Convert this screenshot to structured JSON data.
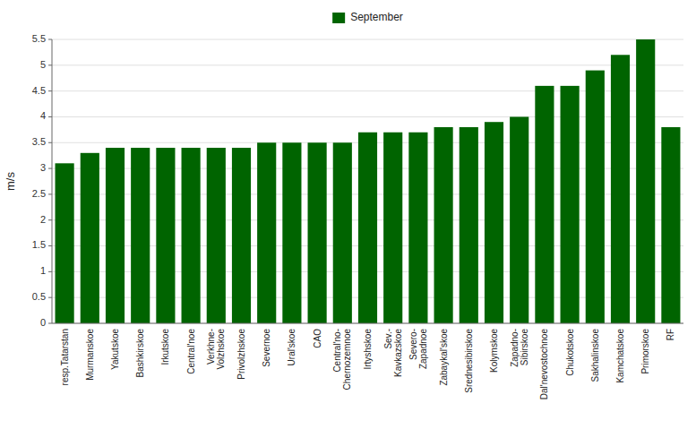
{
  "chart_data": {
    "type": "bar",
    "categories": [
      "resp.Tatarstan",
      "Murmanskoe",
      "Yakutskoe",
      "Bashkirskoe",
      "Irkutskoe",
      "Central'noe",
      "Verkhne-\nVolzhskoe",
      "Privolzhskoe",
      "Severnoe",
      "Ural'skoe",
      "CAO",
      "Central'no-\nChernozemnoe",
      "Irtyshskoe",
      "Sev.-\nKavkazskoe",
      "Severo-\nZapadnoe",
      "Zabaykal'skoe",
      "Srednesibirskoe",
      "Kolymskoe",
      "Zapadno-\nSibirskoe",
      "Dal'nevostochnoe",
      "Chukotskoe",
      "Sakhalinskoe",
      "Kamchatskoe",
      "Primorskoe",
      "RF"
    ],
    "series": [
      {
        "name": "September",
        "color": "#006400",
        "values": [
          3.1,
          3.3,
          3.4,
          3.4,
          3.4,
          3.4,
          3.4,
          3.4,
          3.5,
          3.5,
          3.5,
          3.5,
          3.7,
          3.7,
          3.7,
          3.8,
          3.8,
          3.9,
          4.0,
          4.6,
          4.6,
          4.9,
          5.2,
          5.5,
          3.8
        ]
      }
    ],
    "y_label": "m/s",
    "ylim": [
      0,
      5.5
    ],
    "yticks": [
      0,
      0.5,
      1.0,
      1.5,
      2.0,
      2.5,
      3.0,
      3.5,
      4.0,
      4.5,
      5.0,
      5.5
    ],
    "grid": true,
    "legend": "top"
  }
}
